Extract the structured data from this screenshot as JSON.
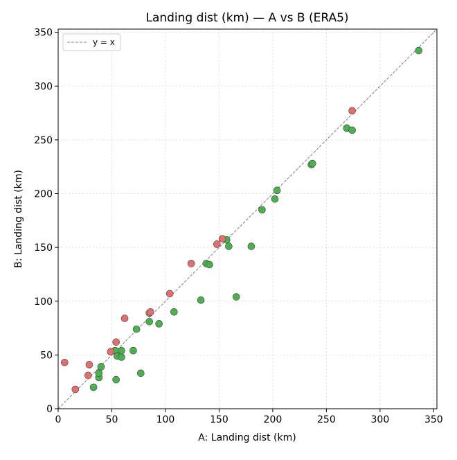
{
  "chart_data": {
    "type": "scatter",
    "title": "Landing dist (km) — A vs B (ERA5)",
    "xlabel": "A:  Landing dist (km)",
    "ylabel": "B:  Landing dist (km)",
    "xlim": [
      0,
      353
    ],
    "ylim": [
      0,
      353
    ],
    "xticks": [
      0,
      50,
      100,
      150,
      200,
      250,
      300,
      350
    ],
    "yticks": [
      0,
      50,
      100,
      150,
      200,
      250,
      300,
      350
    ],
    "grid": true,
    "legend": {
      "position": "top-left",
      "entries": [
        {
          "label": "y = x",
          "style": "dashed-line",
          "color": "#808080"
        }
      ]
    },
    "reference_line": {
      "label": "y = x",
      "slope": 1,
      "intercept": 0
    },
    "colors": {
      "green": "#4caf50",
      "red": "#e07070",
      "edge": "#444444",
      "ref": "#808080",
      "grid": "#dddddd"
    },
    "series": [
      {
        "color": "#4caf50",
        "points": [
          [
            33,
            20
          ],
          [
            38,
            29
          ],
          [
            38,
            33
          ],
          [
            40,
            39
          ],
          [
            54,
            27
          ],
          [
            53,
            54
          ],
          [
            55,
            49
          ],
          [
            59,
            48
          ],
          [
            59,
            54
          ],
          [
            70,
            54
          ],
          [
            73,
            74
          ],
          [
            77,
            33
          ],
          [
            85,
            81
          ],
          [
            94,
            79
          ],
          [
            108,
            90
          ],
          [
            133,
            101
          ],
          [
            138,
            135
          ],
          [
            141,
            134
          ],
          [
            157,
            157
          ],
          [
            159,
            151
          ],
          [
            166,
            104
          ],
          [
            180,
            151
          ],
          [
            190,
            185
          ],
          [
            202,
            195
          ],
          [
            204,
            203
          ],
          [
            236,
            227
          ],
          [
            237,
            228
          ],
          [
            269,
            261
          ],
          [
            274,
            259
          ],
          [
            336,
            333
          ]
        ]
      },
      {
        "color": "#e07070",
        "points": [
          [
            6,
            43
          ],
          [
            16,
            18
          ],
          [
            28,
            31
          ],
          [
            29,
            41
          ],
          [
            49,
            53
          ],
          [
            54,
            62
          ],
          [
            62,
            84
          ],
          [
            85,
            89
          ],
          [
            86,
            90
          ],
          [
            104,
            107
          ],
          [
            124,
            135
          ],
          [
            148,
            153
          ],
          [
            153,
            158
          ],
          [
            274,
            277
          ]
        ]
      }
    ]
  }
}
